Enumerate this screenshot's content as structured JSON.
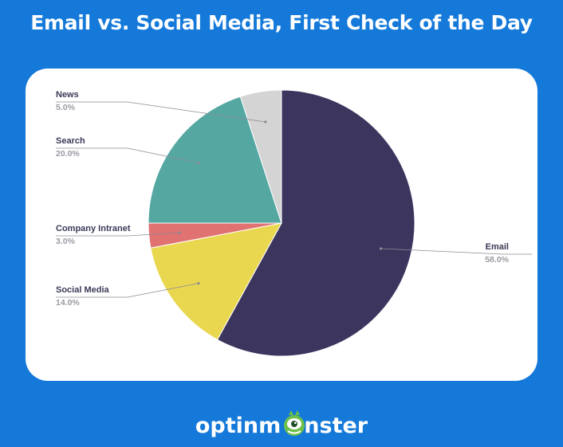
{
  "chart_data": {
    "type": "pie",
    "title": "Email vs. Social Media, First Check of the Day",
    "slices": [
      {
        "label": "Email",
        "value": 58.0,
        "display": "58.0%",
        "color": "#3c355e"
      },
      {
        "label": "Social Media",
        "value": 14.0,
        "display": "14.0%",
        "color": "#e9d74f"
      },
      {
        "label": "Company Intranet",
        "value": 3.0,
        "display": "3.0%",
        "color": "#e07272"
      },
      {
        "label": "Search",
        "value": 20.0,
        "display": "20.0%",
        "color": "#55a7a2"
      },
      {
        "label": "News",
        "value": 5.0,
        "display": "5.0%",
        "color": "#d4d4d4"
      }
    ],
    "start": "top, clockwise",
    "legend": "none",
    "labels": "outside with leader lines"
  },
  "branding": {
    "logo_part1": "optinm",
    "logo_part2": "nster",
    "logo_icon": "monster-face-icon"
  },
  "colors": {
    "background": "#1479d9",
    "card": "#ffffff",
    "label_name": "#3a3a58",
    "label_value": "#9a9aa2",
    "leader": "#8a8a96",
    "monster": "#6cc04a"
  }
}
